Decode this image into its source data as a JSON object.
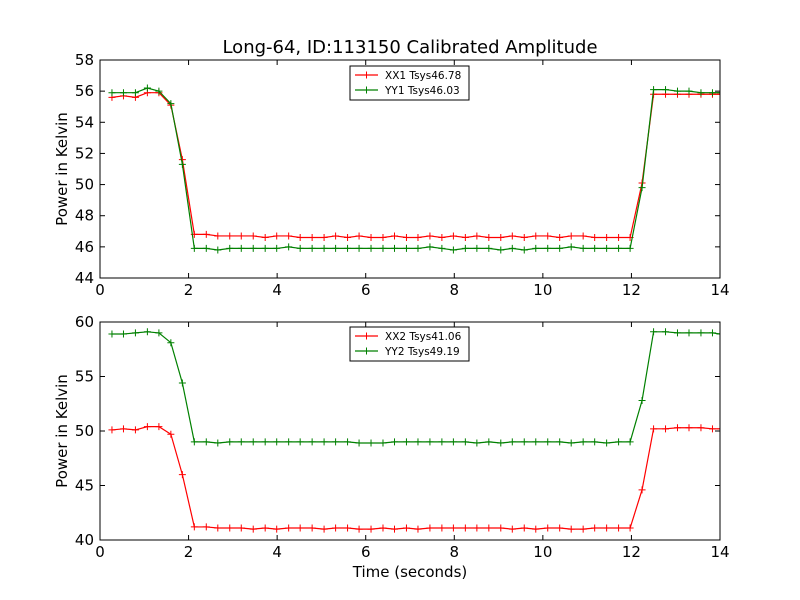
{
  "title": "Long-64, ID:113150 Calibrated Amplitude",
  "colors": {
    "XX": "#ff0000",
    "YY": "#008000"
  },
  "chart_data": [
    {
      "type": "line",
      "title": "Long-64, ID:113150 Calibrated Amplitude",
      "xlabel": "",
      "ylabel": "Power in Kelvin",
      "xlim": [
        0,
        14
      ],
      "ylim": [
        44,
        58
      ],
      "xticks": [
        "0",
        "2",
        "4",
        "6",
        "8",
        "10",
        "12",
        "14"
      ],
      "yticks": [
        "44",
        "46",
        "48",
        "50",
        "52",
        "54",
        "56",
        "58"
      ],
      "legend": "top-center",
      "grid": false,
      "x": [
        0.27,
        0.53,
        0.8,
        1.07,
        1.33,
        1.6,
        1.86,
        2.13,
        2.4,
        2.66,
        2.93,
        3.19,
        3.46,
        3.73,
        3.99,
        4.26,
        4.52,
        4.79,
        5.06,
        5.32,
        5.59,
        5.85,
        6.12,
        6.39,
        6.65,
        6.92,
        7.18,
        7.45,
        7.72,
        7.98,
        8.25,
        8.51,
        8.78,
        9.05,
        9.31,
        9.58,
        9.84,
        10.11,
        10.38,
        10.64,
        10.91,
        11.17,
        11.44,
        11.71,
        11.97,
        12.24,
        12.5,
        12.77,
        13.04,
        13.3,
        13.57,
        13.83,
        14.0
      ],
      "series": [
        {
          "name": "XX1 Tsys46.78",
          "color": "#ff0000",
          "values": [
            55.6,
            55.7,
            55.6,
            55.9,
            55.9,
            55.1,
            51.6,
            46.8,
            46.8,
            46.7,
            46.7,
            46.7,
            46.7,
            46.6,
            46.7,
            46.7,
            46.6,
            46.6,
            46.6,
            46.7,
            46.6,
            46.7,
            46.6,
            46.6,
            46.7,
            46.6,
            46.6,
            46.7,
            46.6,
            46.7,
            46.6,
            46.7,
            46.6,
            46.6,
            46.7,
            46.6,
            46.7,
            46.7,
            46.6,
            46.7,
            46.7,
            46.6,
            46.6,
            46.6,
            46.6,
            50.1,
            55.8,
            55.8,
            55.8,
            55.8,
            55.8,
            55.8,
            55.8
          ]
        },
        {
          "name": "YY1 Tsys46.03",
          "color": "#008000",
          "values": [
            55.9,
            55.9,
            55.9,
            56.2,
            56.0,
            55.2,
            51.3,
            45.9,
            45.9,
            45.8,
            45.9,
            45.9,
            45.9,
            45.9,
            45.9,
            46.0,
            45.9,
            45.9,
            45.9,
            45.9,
            45.9,
            45.9,
            45.9,
            45.9,
            45.9,
            45.9,
            45.9,
            46.0,
            45.9,
            45.8,
            45.9,
            45.9,
            45.9,
            45.8,
            45.9,
            45.8,
            45.9,
            45.9,
            45.9,
            46.0,
            45.9,
            45.9,
            45.9,
            45.9,
            45.9,
            49.8,
            56.1,
            56.1,
            56.0,
            56.0,
            55.9,
            55.9,
            55.9
          ]
        }
      ]
    },
    {
      "type": "line",
      "title": "",
      "xlabel": "Time (seconds)",
      "ylabel": "Power in Kelvin",
      "xlim": [
        0,
        14
      ],
      "ylim": [
        40,
        60
      ],
      "xticks": [
        "0",
        "2",
        "4",
        "6",
        "8",
        "10",
        "12",
        "14"
      ],
      "yticks": [
        "40",
        "45",
        "50",
        "55",
        "60"
      ],
      "legend": "top-center",
      "grid": false,
      "x": [
        0.27,
        0.53,
        0.8,
        1.07,
        1.33,
        1.6,
        1.86,
        2.13,
        2.4,
        2.66,
        2.93,
        3.19,
        3.46,
        3.73,
        3.99,
        4.26,
        4.52,
        4.79,
        5.06,
        5.32,
        5.59,
        5.85,
        6.12,
        6.39,
        6.65,
        6.92,
        7.18,
        7.45,
        7.72,
        7.98,
        8.25,
        8.51,
        8.78,
        9.05,
        9.31,
        9.58,
        9.84,
        10.11,
        10.38,
        10.64,
        10.91,
        11.17,
        11.44,
        11.71,
        11.97,
        12.24,
        12.5,
        12.77,
        13.04,
        13.3,
        13.57,
        13.83,
        14.0
      ],
      "series": [
        {
          "name": "XX2 Tsys41.06",
          "color": "#ff0000",
          "values": [
            50.1,
            50.2,
            50.1,
            50.4,
            50.4,
            49.7,
            46.0,
            41.2,
            41.2,
            41.1,
            41.1,
            41.1,
            41.0,
            41.1,
            41.0,
            41.1,
            41.1,
            41.1,
            41.0,
            41.1,
            41.1,
            41.0,
            41.0,
            41.1,
            41.0,
            41.1,
            41.0,
            41.1,
            41.1,
            41.1,
            41.1,
            41.1,
            41.1,
            41.1,
            41.0,
            41.1,
            41.0,
            41.1,
            41.1,
            41.0,
            41.0,
            41.1,
            41.1,
            41.1,
            41.1,
            44.6,
            50.2,
            50.2,
            50.3,
            50.3,
            50.3,
            50.2,
            50.2
          ]
        },
        {
          "name": "YY2 Tsys49.19",
          "color": "#008000",
          "values": [
            58.9,
            58.9,
            59.0,
            59.1,
            59.0,
            58.1,
            54.4,
            49.0,
            49.0,
            48.9,
            49.0,
            49.0,
            49.0,
            49.0,
            49.0,
            49.0,
            49.0,
            49.0,
            49.0,
            49.0,
            49.0,
            48.9,
            48.9,
            48.9,
            49.0,
            49.0,
            49.0,
            49.0,
            49.0,
            49.0,
            49.0,
            48.9,
            49.0,
            48.9,
            49.0,
            49.0,
            49.0,
            49.0,
            49.0,
            48.9,
            49.0,
            49.0,
            48.9,
            49.0,
            49.0,
            52.8,
            59.1,
            59.1,
            59.0,
            59.0,
            59.0,
            59.0,
            58.9
          ]
        }
      ]
    }
  ]
}
